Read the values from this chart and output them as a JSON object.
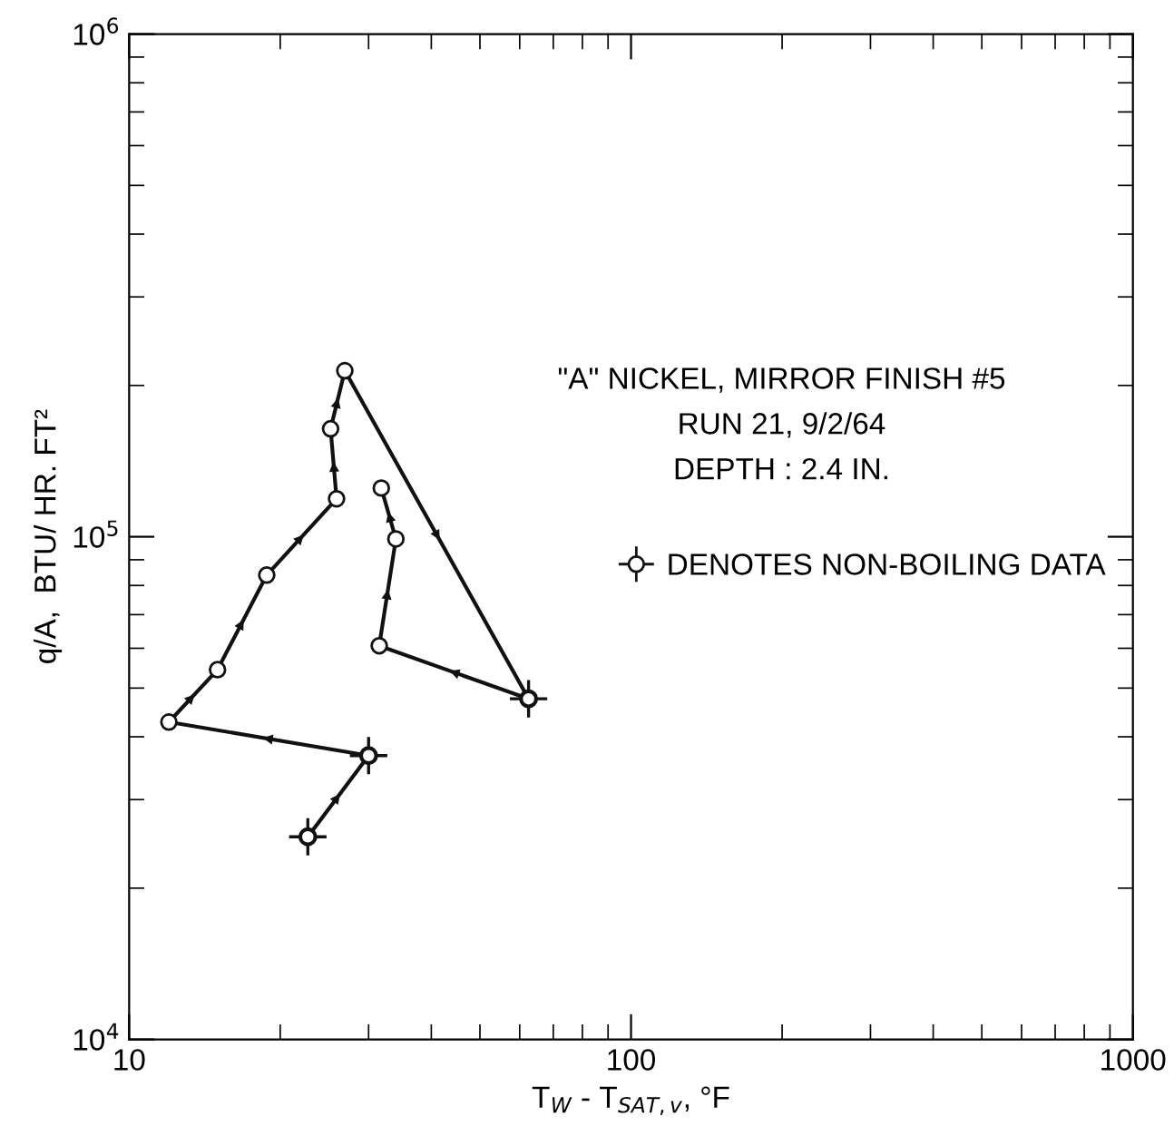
{
  "chart_data": {
    "type": "line",
    "xlabel": "T$_{W}$ - T$_{SAT,v}$, °F",
    "ylabel": "q/A,  BTU/ HR. FT²",
    "log": "xy",
    "xlim": [
      10,
      1000
    ],
    "ylim": [
      10000,
      1000000
    ],
    "xticks": [
      10,
      100,
      1000
    ],
    "yticks": [
      {
        "value": 10000,
        "label": "10$^{4}$"
      },
      {
        "value": 100000,
        "label": "10$^{5}$"
      },
      {
        "value": 1000000,
        "label": "10$^{6}$"
      }
    ],
    "grid": false,
    "legend": "right",
    "annotations": [
      "\"A\" NICKEL, MIRROR FINISH #5",
      "RUN 21, 9/2/64",
      "DEPTH : 2.4 IN."
    ],
    "series": [
      {
        "color": "#111111",
        "marker": "circle",
        "line_style": "solid",
        "x": [
          22.7,
          30.0,
          12.0,
          15.0,
          18.8,
          25.9,
          25.2,
          26.9,
          62.5,
          31.5,
          34.0,
          31.8
        ],
        "values": [
          25300,
          36700,
          42800,
          54400,
          83900,
          119000,
          164000,
          214000,
          47600,
          60700,
          99000,
          125000
        ]
      },
      {
        "type": "scatter",
        "name": "DENOTES NON-BOILING DATA",
        "color": "#111111",
        "marker": "circle",
        "x": [
          22.7,
          30.0,
          62.5
        ],
        "values": [
          25300,
          36700,
          47600
        ]
      }
    ]
  }
}
